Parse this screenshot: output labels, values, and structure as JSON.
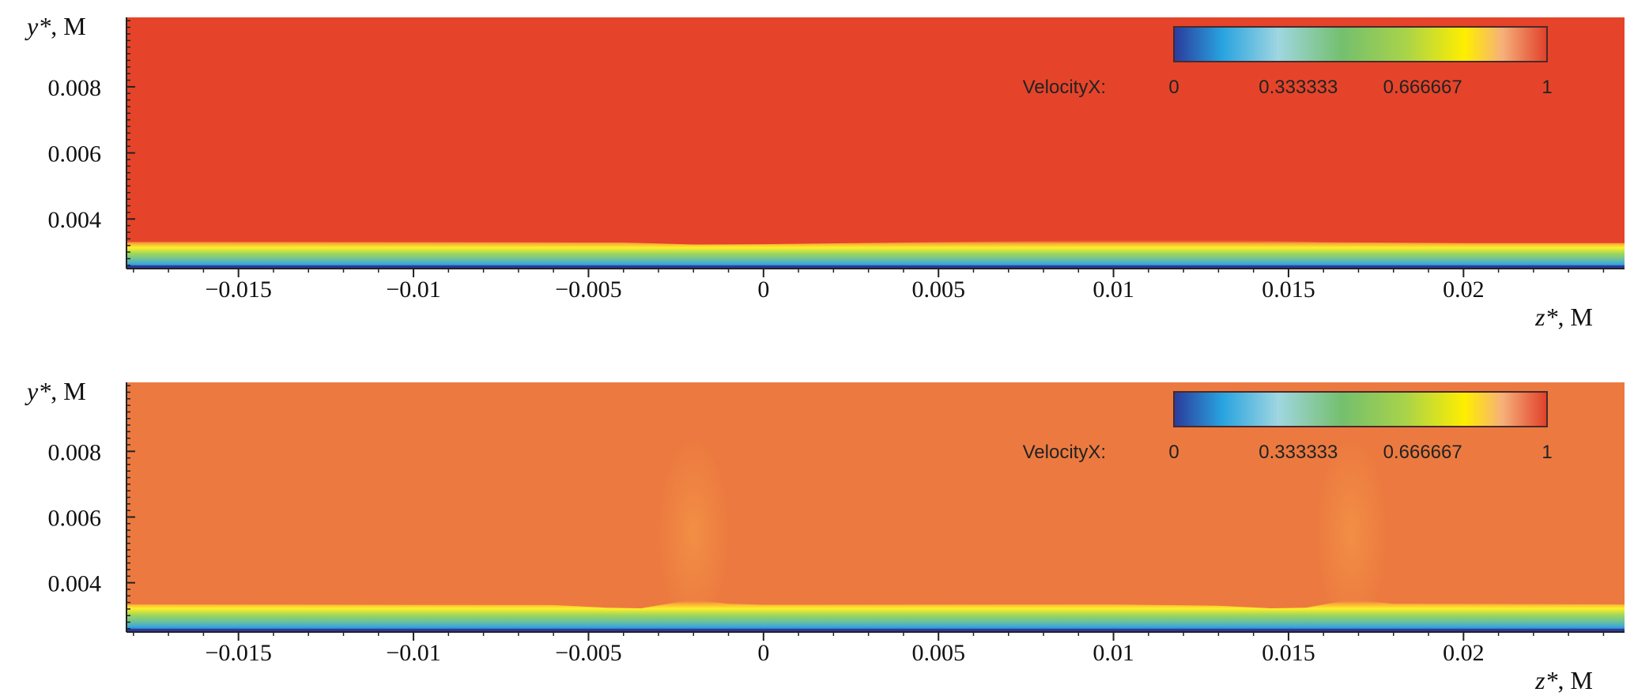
{
  "chart_data": [
    {
      "type": "heatmap",
      "ylabel_var": "y*",
      "ylabel_unit": ", M",
      "xlabel_var": "z*",
      "xlabel_unit": ", M",
      "x_ticks": [
        -0.015,
        -0.01,
        -0.005,
        0,
        0.005,
        0.01,
        0.015,
        0.02
      ],
      "x_tick_labels": [
        "−0.015",
        "−0.01",
        "−0.005",
        "0",
        "0.005",
        "0.01",
        "0.015",
        "0.02"
      ],
      "y_ticks": [
        0.004,
        0.006,
        0.008
      ],
      "y_tick_labels": [
        "0.004",
        "0.006",
        "0.008"
      ],
      "xlim": [
        -0.0182,
        0.0246
      ],
      "ylim": [
        0.0025,
        0.0101
      ],
      "legend": {
        "variable": "VelocityX:",
        "min": 0,
        "max": 1,
        "tick_labels": [
          "0",
          "0.333333",
          "0.666667",
          "1"
        ]
      },
      "field": {
        "freestream_velocity": 0.98,
        "freestream_color": "#e5442a",
        "boundary_layer_edge_y": [
          [
            -0.0182,
            0.00308
          ],
          [
            -0.004,
            0.00305
          ],
          [
            -0.002,
            0.00299
          ],
          [
            0.0,
            0.003
          ],
          [
            0.004,
            0.00305
          ],
          [
            0.008,
            0.0031
          ],
          [
            0.011,
            0.00314
          ],
          [
            0.013,
            0.00314
          ],
          [
            0.016,
            0.00306
          ],
          [
            0.02,
            0.00303
          ],
          [
            0.0246,
            0.00303
          ]
        ]
      }
    },
    {
      "type": "heatmap",
      "ylabel_var": "y*",
      "ylabel_unit": ", M",
      "xlabel_var": "z*",
      "xlabel_unit": ", M",
      "x_ticks": [
        -0.015,
        -0.01,
        -0.005,
        0,
        0.005,
        0.01,
        0.015,
        0.02
      ],
      "x_tick_labels": [
        "−0.015",
        "−0.01",
        "−0.005",
        "0",
        "0.005",
        "0.01",
        "0.015",
        "0.02"
      ],
      "y_ticks": [
        0.004,
        0.006,
        0.008
      ],
      "y_tick_labels": [
        "0.004",
        "0.006",
        "0.008"
      ],
      "xlim": [
        -0.0182,
        0.0246
      ],
      "ylim": [
        0.0025,
        0.0101
      ],
      "legend": {
        "variable": "VelocityX:",
        "min": 0,
        "max": 1,
        "tick_labels": [
          "0",
          "0.333333",
          "0.666667",
          "1"
        ]
      },
      "field": {
        "freestream_velocity": 0.92,
        "freestream_color": "#ec7a40",
        "boundary_layer_edge_y": [
          [
            -0.0182,
            0.0031
          ],
          [
            -0.006,
            0.00308
          ],
          [
            -0.0045,
            0.003
          ],
          [
            -0.0035,
            0.00298
          ],
          [
            -0.002,
            0.00325
          ],
          [
            -0.001,
            0.00312
          ],
          [
            0.0,
            0.00309
          ],
          [
            0.01,
            0.0031
          ],
          [
            0.013,
            0.00306
          ],
          [
            0.0145,
            0.00298
          ],
          [
            0.0155,
            0.003
          ],
          [
            0.0168,
            0.00325
          ],
          [
            0.018,
            0.00312
          ],
          [
            0.0246,
            0.0031
          ]
        ]
      }
    }
  ]
}
